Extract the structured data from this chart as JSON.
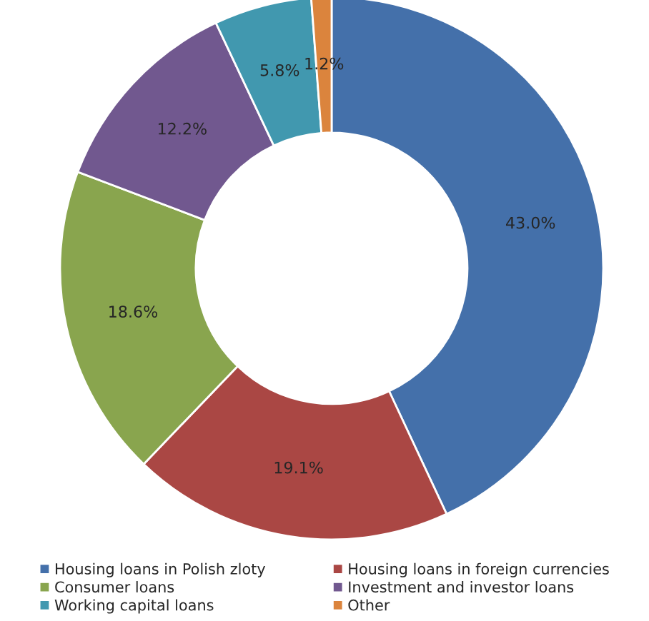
{
  "chart_data": {
    "type": "donut",
    "categories": [
      "Housing loans in Polish zloty",
      "Housing loans in foreign currencies",
      "Consumer loans",
      "Investment and investor loans",
      "Working capital loans",
      "Other"
    ],
    "values": [
      43.0,
      19.1,
      18.6,
      12.2,
      5.8,
      1.2
    ],
    "colors": [
      "#4470aa",
      "#aa4744",
      "#89a54e",
      "#71588f",
      "#4198af",
      "#db843d"
    ],
    "value_labels": [
      "43.0%",
      "19.1%",
      "18.6%",
      "12.2%",
      "5.8%",
      "1.2%"
    ],
    "legend": "bottom"
  }
}
